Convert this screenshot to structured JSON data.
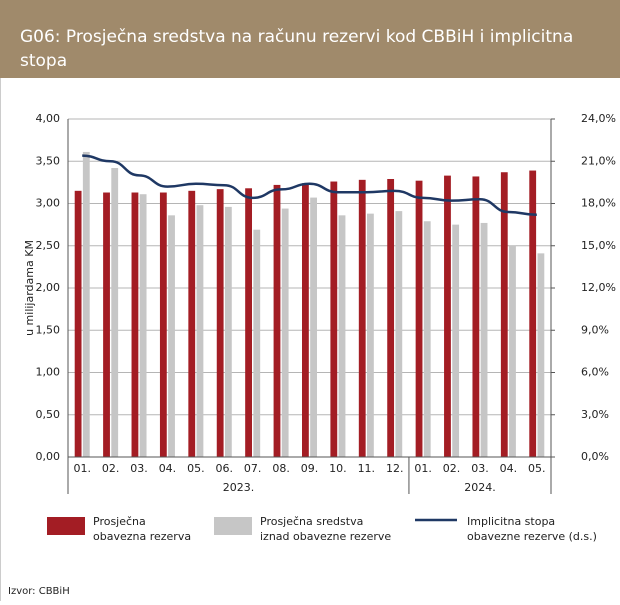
{
  "header": {
    "title_line1": "G06:  Prosječna sredstva na računu rezervi kod CBBiH i implicitna",
    "title_line2": "stopa"
  },
  "chart_data": {
    "type": "bar_line",
    "y_label": "u milijardama KM",
    "categories": [
      "01.",
      "02.",
      "03.",
      "04.",
      "05.",
      "06.",
      "07.",
      "08.",
      "09.",
      "10.",
      "11.",
      "12.",
      "01.",
      "02.",
      "03.",
      "04.",
      "05."
    ],
    "groups": [
      {
        "label": "2023.",
        "count": 12
      },
      {
        "label": "2024.",
        "count": 5
      }
    ],
    "series": [
      {
        "name": "Prosječna obavezna rezerva",
        "color": "#a31d24",
        "kind": "bar",
        "values": [
          3.15,
          3.13,
          3.13,
          3.13,
          3.15,
          3.17,
          3.18,
          3.22,
          3.24,
          3.26,
          3.28,
          3.29,
          3.27,
          3.33,
          3.32,
          3.37,
          3.39
        ]
      },
      {
        "name": "Prosječna sredstva iznad obavezne rezerve",
        "color": "#c6c6c6",
        "kind": "bar",
        "values": [
          3.61,
          3.42,
          3.11,
          2.86,
          2.98,
          2.96,
          2.69,
          2.94,
          3.07,
          2.86,
          2.88,
          2.91,
          2.79,
          2.75,
          2.77,
          2.5,
          2.41
        ]
      },
      {
        "name": "Implicitna stopa obavezne rezerve (d.s.)",
        "color": "#1f3864",
        "kind": "line",
        "axis": "y2",
        "values": [
          21.4,
          21.0,
          20.0,
          19.2,
          19.4,
          19.3,
          18.4,
          19.0,
          19.4,
          18.8,
          18.8,
          18.9,
          18.4,
          18.2,
          18.3,
          17.4,
          17.2
        ]
      }
    ],
    "ylim": [
      0,
      4
    ],
    "yticks": [
      {
        "value": 0,
        "label": "0,00"
      },
      {
        "value": 0.5,
        "label": "0,50"
      },
      {
        "value": 1,
        "label": "1,00"
      },
      {
        "value": 1.5,
        "label": "1,50"
      },
      {
        "value": 2,
        "label": "2,00"
      },
      {
        "value": 2.5,
        "label": "2,50"
      },
      {
        "value": 3,
        "label": "3,00"
      },
      {
        "value": 3.5,
        "label": "3,50"
      },
      {
        "value": 4,
        "label": "4,00"
      }
    ],
    "y2lim": [
      0,
      24
    ],
    "y2ticks": [
      {
        "value": 0,
        "label": "0,0%"
      },
      {
        "value": 3,
        "label": "3,0%"
      },
      {
        "value": 6,
        "label": "6,0%"
      },
      {
        "value": 9,
        "label": "9,0%"
      },
      {
        "value": 12,
        "label": "12,0%"
      },
      {
        "value": 15,
        "label": "15,0%"
      },
      {
        "value": 18,
        "label": "18,0%"
      },
      {
        "value": 21,
        "label": "21,0%"
      },
      {
        "value": 24,
        "label": "24,0%"
      }
    ],
    "grid": true,
    "legend_names": [
      [
        "Prosječna",
        "obavezna rezerva"
      ],
      [
        "Prosječna sredstva",
        "iznad obavezne rezerve"
      ],
      [
        "Implicitna stopa",
        "obavezne rezerve (d.s.)"
      ]
    ]
  },
  "footer": {
    "source": "Izvor: CBBiH"
  }
}
